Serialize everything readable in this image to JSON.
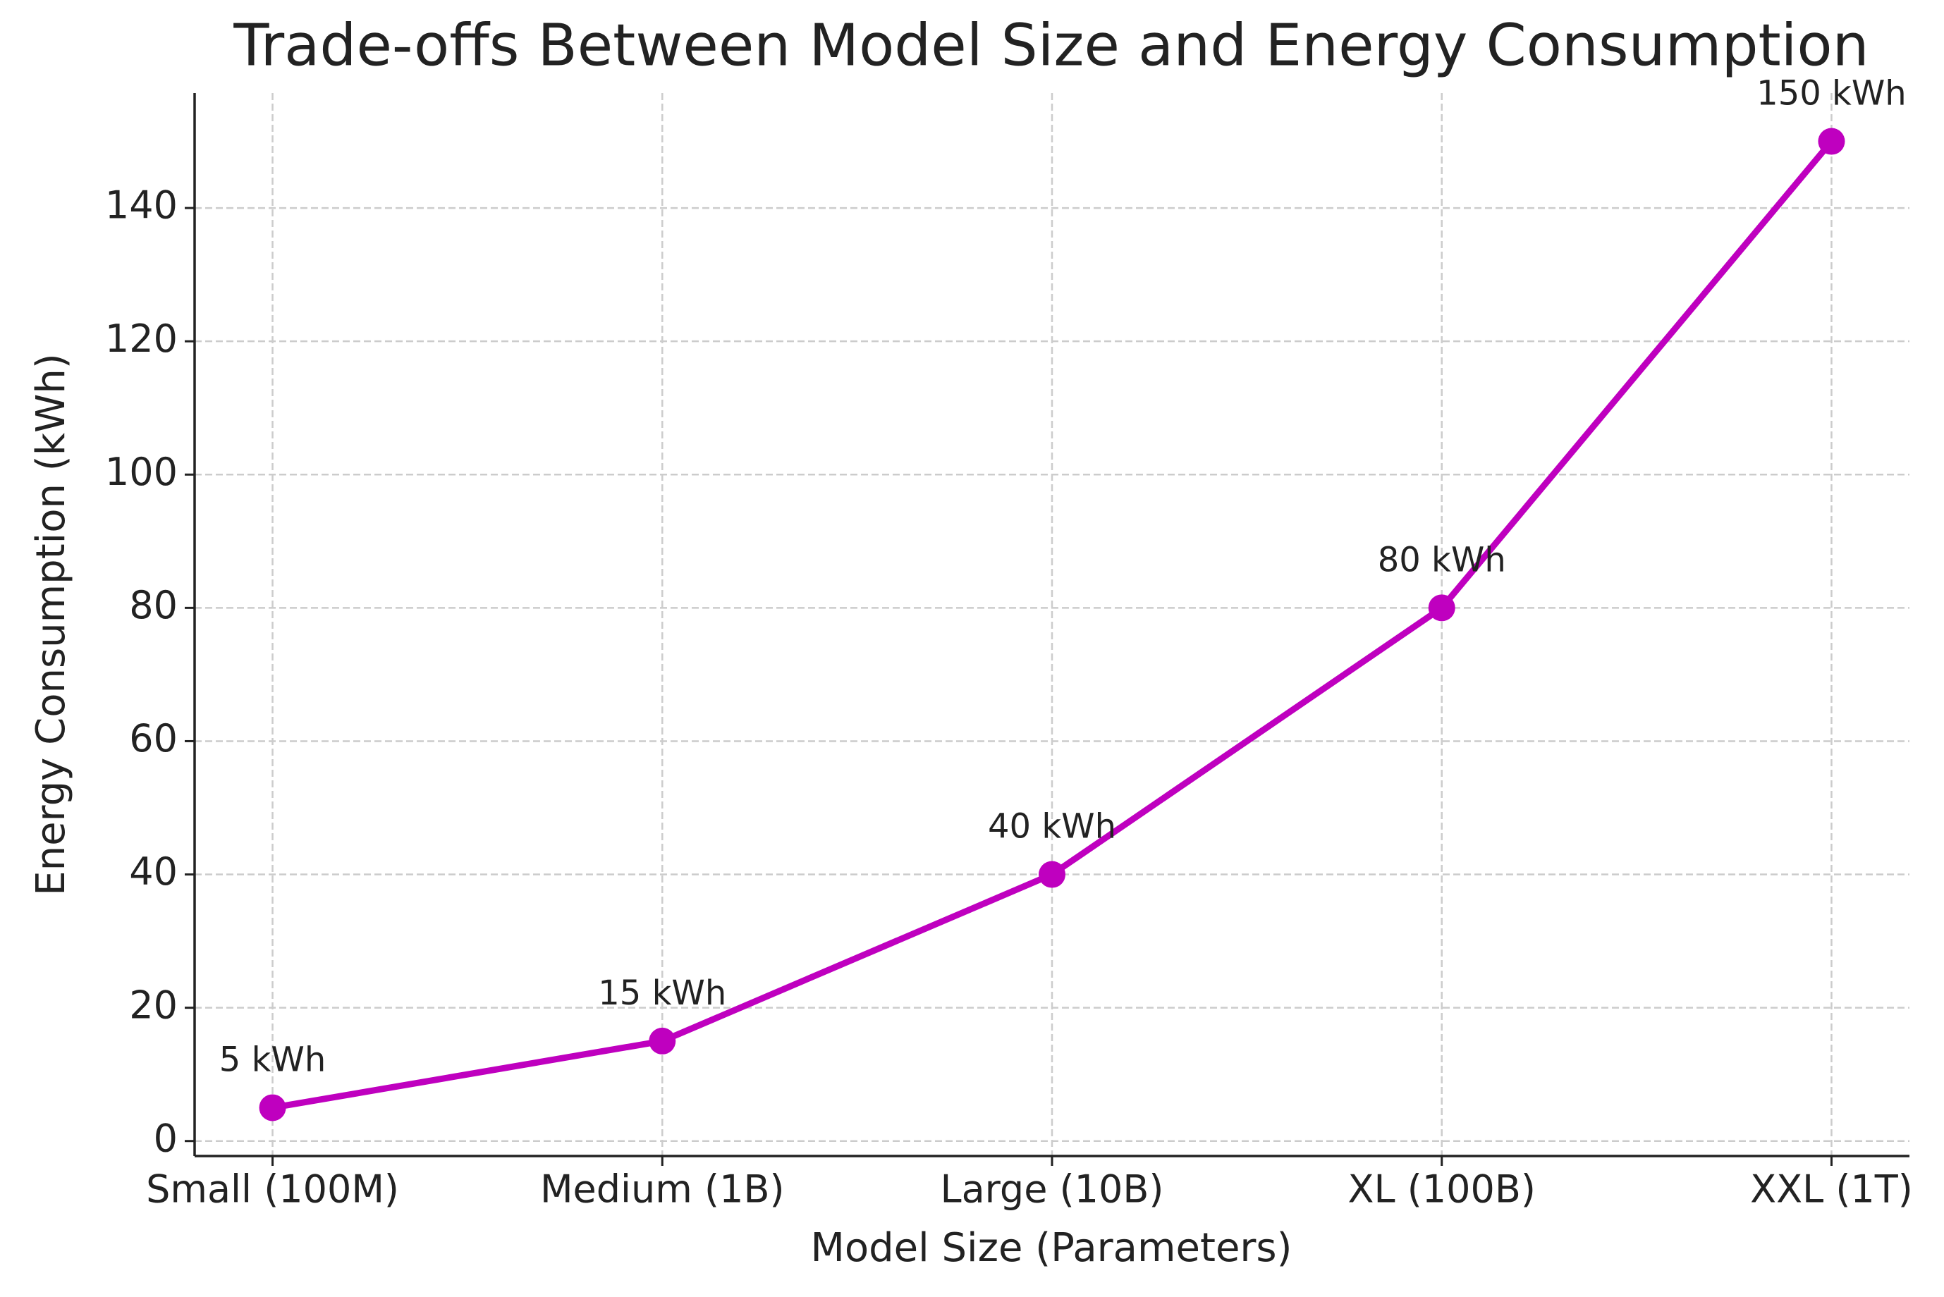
{
  "chart_data": {
    "type": "line",
    "title": "Trade-offs Between Model Size and Energy Consumption",
    "x_label": "Model Size (Parameters)",
    "y_label": "Energy Consumption (kWh)",
    "categories": [
      "Small (100M)",
      "Medium (1B)",
      "Large (10B)",
      "XL (100B)",
      "XXL (1T)"
    ],
    "series": [
      {
        "color": "#bf00bf",
        "values": [
          5,
          15,
          40,
          80,
          150
        ],
        "value_labels": [
          "5 kWh",
          "15 kWh",
          "40 kWh",
          "80 kWh",
          "150 kWh"
        ]
      }
    ],
    "ylim": [
      -2.25,
      157.25
    ],
    "yticks": [
      0,
      20,
      40,
      60,
      80,
      100,
      120,
      140
    ],
    "grid": true
  }
}
